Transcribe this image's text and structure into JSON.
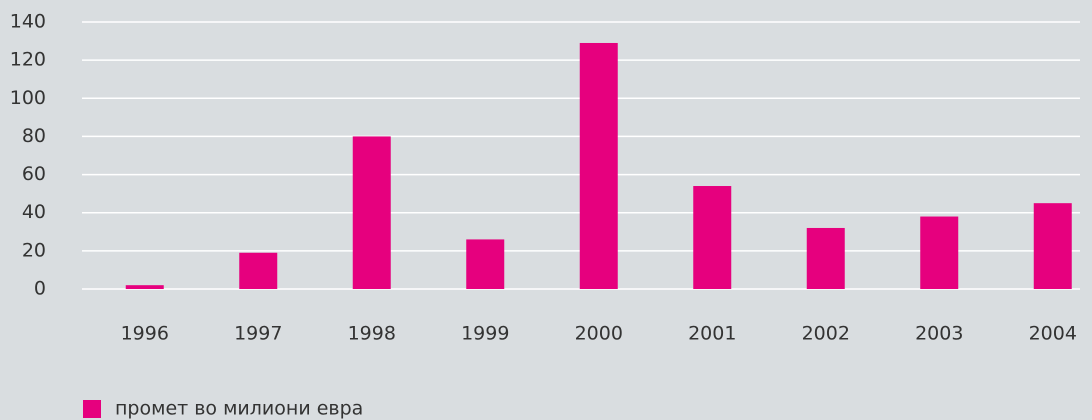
{
  "chart_data": {
    "type": "bar",
    "categories": [
      "1996",
      "1997",
      "1998",
      "1999",
      "2000",
      "2001",
      "2002",
      "2003",
      "2004"
    ],
    "series": [
      {
        "name": "промет во милиони евра",
        "color": "#e6007e",
        "values": [
          2,
          19,
          80,
          26,
          129,
          54,
          32,
          38,
          45
        ]
      }
    ],
    "ylim": [
      0,
      140
    ],
    "yticks": [
      0,
      20,
      40,
      60,
      80,
      100,
      120,
      140
    ],
    "grid": true,
    "legend": "bottom-left"
  }
}
